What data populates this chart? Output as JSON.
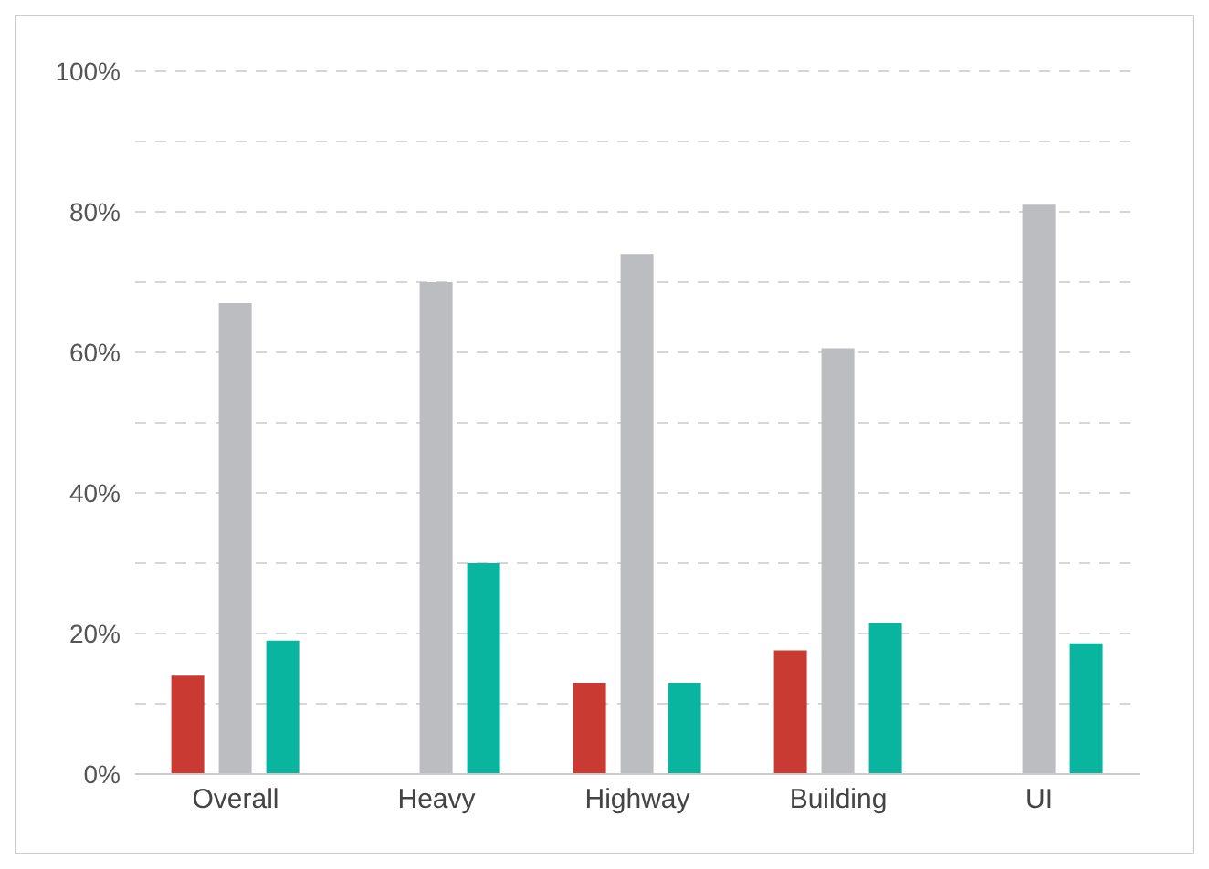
{
  "chart_data": {
    "type": "bar",
    "categories": [
      "Overall",
      "Heavy",
      "Highway",
      "Building",
      "UI"
    ],
    "series": [
      {
        "color": "#c83a32",
        "values": [
          14,
          0,
          13,
          17.6,
          0
        ]
      },
      {
        "color": "#bcbdc0",
        "values": [
          67,
          70,
          74,
          60.6,
          81
        ]
      },
      {
        "color": "#0ab5a0",
        "values": [
          19,
          30,
          13,
          21.5,
          18.6
        ]
      }
    ],
    "ylim": [
      0,
      100
    ],
    "yticks": [
      {
        "value": 0,
        "label": "0%"
      },
      {
        "value": 10,
        "label": null
      },
      {
        "value": 20,
        "label": "20%"
      },
      {
        "value": 30,
        "label": null
      },
      {
        "value": 40,
        "label": "40%"
      },
      {
        "value": 50,
        "label": null
      },
      {
        "value": 60,
        "label": "60%"
      },
      {
        "value": 70,
        "label": null
      },
      {
        "value": 80,
        "label": "80%"
      },
      {
        "value": 90,
        "label": null
      },
      {
        "value": 100,
        "label": "100%"
      }
    ],
    "grid": "y",
    "legend": false
  }
}
